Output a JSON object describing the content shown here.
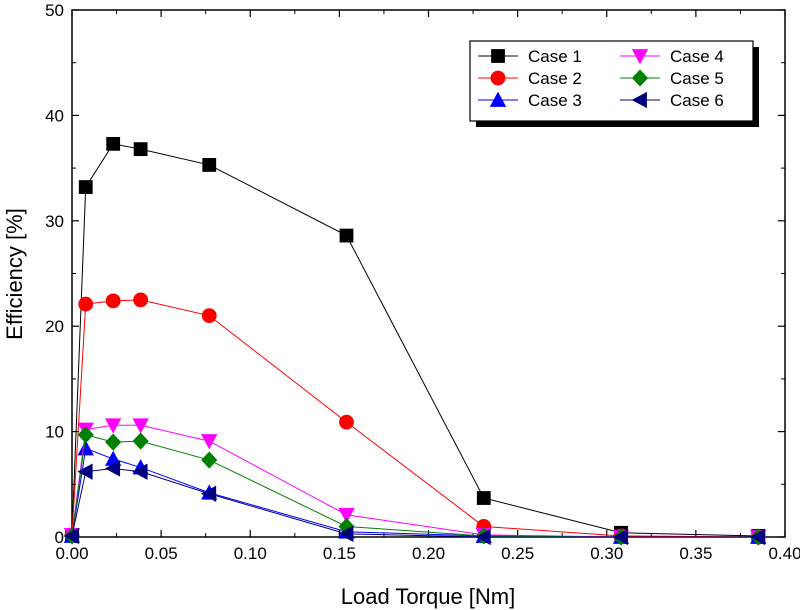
{
  "chart_data": {
    "type": "line",
    "title": "",
    "xlabel": "Load Torque [Nm]",
    "ylabel": "Efficiency [%]",
    "xlim": [
      0.0,
      0.4
    ],
    "ylim": [
      0,
      50
    ],
    "xticks": [
      "0.00",
      "0.05",
      "0.10",
      "0.15",
      "0.20",
      "0.25",
      "0.30",
      "0.35",
      "0.40"
    ],
    "yticks": [
      "0",
      "10",
      "20",
      "30",
      "40",
      "50"
    ],
    "grid": false,
    "legend_position": "top-right",
    "x": [
      0.0,
      0.0077,
      0.0231,
      0.0385,
      0.077,
      0.154,
      0.231,
      0.308,
      0.385
    ],
    "series": [
      {
        "name": "Case 1",
        "marker": "square",
        "color": "#000000",
        "values": [
          0.2,
          33.2,
          37.3,
          36.8,
          35.3,
          28.6,
          3.7,
          0.4,
          0.1
        ]
      },
      {
        "name": "Case 2",
        "marker": "circle",
        "color": "#ff0000",
        "values": [
          0.2,
          22.1,
          22.4,
          22.5,
          21.0,
          10.9,
          1.0,
          0.1,
          0.0
        ]
      },
      {
        "name": "Case 3",
        "marker": "triangle-up",
        "color": "#0000ff",
        "values": [
          0.1,
          8.4,
          7.4,
          6.6,
          4.2,
          0.5,
          0.1,
          0.0,
          0.0
        ]
      },
      {
        "name": "Case 4",
        "marker": "triangle-down",
        "color": "#ff00ff",
        "values": [
          0.2,
          10.2,
          10.6,
          10.6,
          9.1,
          2.1,
          0.2,
          0.0,
          0.0
        ]
      },
      {
        "name": "Case 5",
        "marker": "diamond",
        "color": "#008000",
        "values": [
          0.1,
          9.7,
          9.0,
          9.1,
          7.3,
          1.0,
          0.1,
          0.0,
          0.0
        ]
      },
      {
        "name": "Case 6",
        "marker": "triangle-left",
        "color": "#000080",
        "values": [
          0.1,
          6.2,
          6.5,
          6.2,
          4.1,
          0.3,
          0.0,
          0.0,
          0.0
        ]
      }
    ]
  }
}
